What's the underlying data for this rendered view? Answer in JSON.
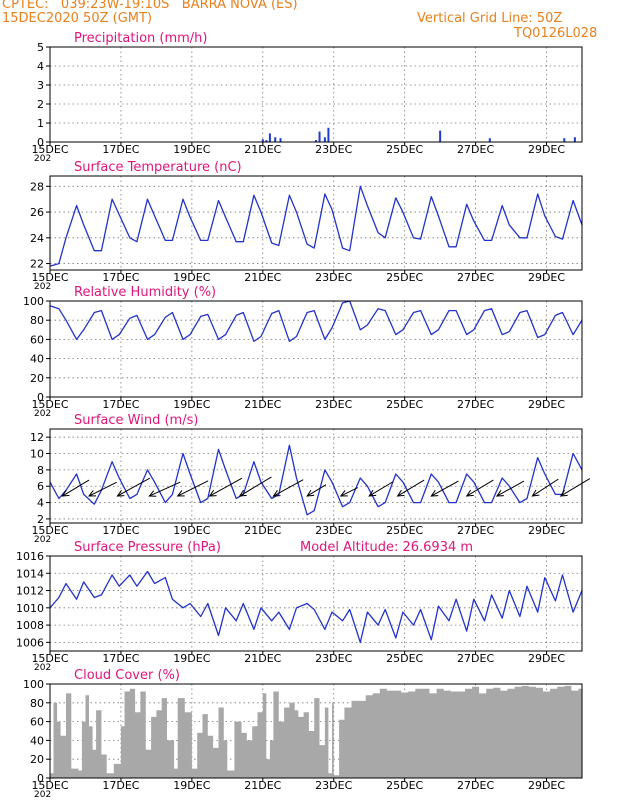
{
  "header": {
    "station_line": "CPTEC:   039:23W-19:10S   BARRA NOVA (ES)",
    "date_line": "15DEC2020 50Z (GMT)",
    "grid_note": "Vertical Grid Line: 50Z",
    "code": "TQ0126L028"
  },
  "colors": {
    "header_text": "#e8801e",
    "panel_title": "#e0157a",
    "series_line": "#2233cc",
    "precip_bar": "#1f3bd6",
    "cloud_fill": "#a8a8a8",
    "wind_arrow": "#000000"
  },
  "x_axis": {
    "ticks": [
      "15DEC",
      "17DEC",
      "19DEC",
      "21DEC",
      "23DEC",
      "25DEC",
      "27DEC",
      "29DEC"
    ],
    "year_fragment": "202",
    "tick_days": [
      15,
      17,
      19,
      21,
      23,
      25,
      27,
      29
    ],
    "range_days": [
      15,
      30
    ]
  },
  "chart_data": [
    {
      "id": "precip",
      "type": "bar",
      "title": "Precipitation  (mm/h)",
      "ylim": [
        0,
        5
      ],
      "yticks": [
        "0",
        "1",
        "2",
        "3",
        "4",
        "5"
      ],
      "ytick_values": [
        0,
        1,
        2,
        3,
        4,
        5
      ],
      "grid": true,
      "x": [
        21.0,
        21.1,
        21.2,
        21.35,
        21.5,
        22.5,
        22.6,
        22.75,
        22.85,
        26.0,
        27.4,
        29.5,
        29.8
      ],
      "values": [
        0.15,
        0.1,
        0.45,
        0.25,
        0.2,
        0.1,
        0.55,
        0.25,
        0.75,
        0.6,
        0.2,
        0.2,
        0.25
      ]
    },
    {
      "id": "temperature",
      "type": "line",
      "title": "Surface Temperature (nC)",
      "ylim": [
        21.5,
        28.8
      ],
      "yticks": [
        "22",
        "24",
        "26",
        "28"
      ],
      "ytick_values": [
        22,
        24,
        26,
        28
      ],
      "grid": true,
      "x": [
        15.0,
        15.25,
        15.45,
        15.75,
        15.95,
        16.25,
        16.45,
        16.75,
        16.95,
        17.25,
        17.45,
        17.75,
        17.95,
        18.25,
        18.45,
        18.75,
        18.95,
        19.25,
        19.45,
        19.75,
        19.95,
        20.25,
        20.45,
        20.75,
        20.95,
        21.25,
        21.45,
        21.75,
        21.95,
        22.25,
        22.45,
        22.75,
        22.95,
        23.25,
        23.45,
        23.75,
        23.95,
        24.25,
        24.45,
        24.75,
        24.95,
        25.25,
        25.45,
        25.75,
        25.95,
        26.25,
        26.45,
        26.75,
        26.95,
        27.25,
        27.45,
        27.75,
        27.95,
        28.25,
        28.45,
        28.75,
        28.95,
        29.25,
        29.45,
        29.75,
        30.0
      ],
      "values": [
        21.8,
        22.0,
        24.0,
        26.5,
        25.0,
        23.0,
        23.0,
        27.0,
        25.8,
        24.0,
        23.7,
        27.0,
        25.7,
        23.8,
        23.8,
        27.0,
        25.6,
        23.8,
        23.8,
        26.9,
        25.6,
        23.7,
        23.7,
        27.3,
        26.0,
        23.6,
        23.4,
        27.3,
        26.0,
        23.5,
        23.2,
        27.4,
        26.2,
        23.2,
        23.0,
        28.0,
        26.5,
        24.4,
        24.0,
        27.1,
        26.0,
        24.0,
        23.9,
        27.2,
        25.7,
        23.3,
        23.3,
        26.6,
        25.3,
        23.8,
        23.8,
        26.5,
        25.0,
        24.0,
        24.0,
        27.4,
        25.7,
        24.1,
        23.9,
        26.9,
        25.0
      ]
    },
    {
      "id": "humidity",
      "type": "line",
      "title": "Relative Humidity (%)",
      "ylim": [
        0,
        100
      ],
      "yticks": [
        "0",
        "20",
        "40",
        "60",
        "80",
        "100"
      ],
      "ytick_values": [
        0,
        20,
        40,
        60,
        80,
        100
      ],
      "grid": true,
      "x": [
        15.0,
        15.25,
        15.45,
        15.75,
        15.95,
        16.25,
        16.45,
        16.75,
        16.95,
        17.25,
        17.45,
        17.75,
        17.95,
        18.25,
        18.45,
        18.75,
        18.95,
        19.25,
        19.45,
        19.75,
        19.95,
        20.25,
        20.45,
        20.75,
        20.95,
        21.25,
        21.45,
        21.75,
        21.95,
        22.25,
        22.45,
        22.75,
        22.95,
        23.25,
        23.45,
        23.75,
        23.95,
        24.25,
        24.45,
        24.75,
        24.95,
        25.25,
        25.45,
        25.75,
        25.95,
        26.25,
        26.45,
        26.75,
        26.95,
        27.25,
        27.45,
        27.75,
        27.95,
        28.25,
        28.45,
        28.75,
        28.95,
        29.25,
        29.45,
        29.75,
        30.0
      ],
      "values": [
        95,
        92,
        80,
        60,
        70,
        88,
        90,
        60,
        65,
        82,
        85,
        60,
        65,
        83,
        88,
        60,
        65,
        84,
        86,
        60,
        65,
        85,
        88,
        58,
        63,
        87,
        90,
        58,
        63,
        88,
        90,
        60,
        72,
        98,
        100,
        70,
        75,
        92,
        90,
        65,
        70,
        88,
        90,
        65,
        70,
        90,
        90,
        65,
        70,
        90,
        92,
        65,
        68,
        88,
        90,
        62,
        65,
        85,
        88,
        65,
        80
      ]
    },
    {
      "id": "wind",
      "type": "line",
      "title": "Surface Wind (m/s)",
      "ylim": [
        1.5,
        13
      ],
      "yticks": [
        "2",
        "4",
        "6",
        "8",
        "10",
        "12"
      ],
      "ytick_values": [
        2,
        4,
        6,
        8,
        10,
        12
      ],
      "grid": true,
      "x": [
        15.0,
        15.25,
        15.45,
        15.75,
        15.95,
        16.25,
        16.45,
        16.75,
        16.95,
        17.25,
        17.45,
        17.75,
        17.95,
        18.25,
        18.45,
        18.75,
        18.95,
        19.25,
        19.45,
        19.75,
        19.95,
        20.25,
        20.45,
        20.75,
        20.95,
        21.25,
        21.45,
        21.75,
        21.95,
        22.25,
        22.45,
        22.75,
        22.95,
        23.25,
        23.45,
        23.75,
        23.95,
        24.25,
        24.45,
        24.75,
        24.95,
        25.25,
        25.45,
        25.75,
        25.95,
        26.25,
        26.45,
        26.75,
        26.95,
        27.25,
        27.45,
        27.75,
        27.95,
        28.25,
        28.45,
        28.75,
        28.95,
        29.25,
        29.45,
        29.75,
        30.0
      ],
      "values": [
        6.5,
        4.5,
        5.5,
        7.5,
        5.0,
        3.8,
        5.5,
        9.0,
        7.0,
        4.5,
        5.0,
        8.0,
        6.5,
        4.0,
        5.0,
        10.0,
        7.5,
        4.0,
        4.5,
        10.5,
        8.0,
        4.5,
        5.0,
        9.0,
        6.5,
        4.5,
        5.0,
        11.0,
        7.0,
        2.5,
        3.0,
        8.0,
        6.5,
        3.5,
        4.0,
        7.0,
        6.0,
        3.5,
        4.0,
        7.5,
        6.5,
        4.0,
        4.0,
        7.5,
        6.5,
        4.0,
        4.0,
        7.5,
        6.5,
        4.0,
        4.0,
        7.0,
        6.0,
        4.0,
        4.5,
        9.5,
        7.5,
        5.0,
        5.0,
        10.0,
        8.0
      ],
      "arrows": {
        "x": [
          15.35,
          16.1,
          16.9,
          17.8,
          18.6,
          19.5,
          20.35,
          21.3,
          22.25,
          23.2,
          24.0,
          24.8,
          25.75,
          26.75,
          27.6,
          28.6,
          29.4
        ],
        "u": [
          1.0,
          1.0,
          1.0,
          1.0,
          1.0,
          1.0,
          1.0,
          1.0,
          1.0,
          1.0,
          1.0,
          1.0,
          1.0,
          1.0,
          1.0,
          1.0,
          1.0
        ],
        "v": [
          0.6,
          0.5,
          0.55,
          0.45,
          0.5,
          0.55,
          0.6,
          0.55,
          0.6,
          0.5,
          0.6,
          0.6,
          0.55,
          0.6,
          0.55,
          0.65,
          0.6
        ],
        "mag": [
          7,
          7,
          9,
          8,
          8,
          9,
          9,
          8,
          4,
          3,
          6,
          7,
          7,
          7,
          7,
          7,
          8
        ]
      }
    },
    {
      "id": "pressure",
      "type": "line",
      "title": "Surface Pressure (hPa)",
      "ylim": [
        1005,
        1016
      ],
      "yticks": [
        "1006",
        "1008",
        "1010",
        "1012",
        "1014",
        "1016"
      ],
      "ytick_values": [
        1006,
        1008,
        1010,
        1012,
        1014,
        1016
      ],
      "grid": true,
      "x": [
        15.0,
        15.25,
        15.45,
        15.75,
        15.95,
        16.25,
        16.45,
        16.75,
        16.95,
        17.25,
        17.45,
        17.75,
        17.95,
        18.25,
        18.45,
        18.75,
        18.95,
        19.25,
        19.45,
        19.75,
        19.95,
        20.25,
        20.45,
        20.75,
        20.95,
        21.25,
        21.45,
        21.75,
        21.95,
        22.25,
        22.45,
        22.75,
        22.95,
        23.25,
        23.45,
        23.75,
        23.95,
        24.25,
        24.45,
        24.75,
        24.95,
        25.25,
        25.45,
        25.75,
        25.95,
        26.25,
        26.45,
        26.75,
        26.95,
        27.25,
        27.45,
        27.75,
        27.95,
        28.25,
        28.45,
        28.75,
        28.95,
        29.25,
        29.45,
        29.75,
        30.0
      ],
      "values": [
        1010.0,
        1011.2,
        1012.8,
        1011.0,
        1013.0,
        1011.2,
        1011.5,
        1013.8,
        1012.5,
        1013.8,
        1012.5,
        1014.2,
        1012.8,
        1013.5,
        1011.0,
        1010.0,
        1010.5,
        1009.0,
        1010.5,
        1006.8,
        1010.0,
        1008.5,
        1010.5,
        1007.5,
        1010.0,
        1008.5,
        1009.5,
        1007.5,
        1010.0,
        1010.5,
        1009.8,
        1007.5,
        1009.5,
        1008.5,
        1009.8,
        1006.0,
        1009.5,
        1008.0,
        1009.8,
        1006.5,
        1009.5,
        1008.0,
        1009.8,
        1006.3,
        1010.2,
        1008.5,
        1011.0,
        1007.3,
        1011.0,
        1008.5,
        1011.5,
        1008.8,
        1012.0,
        1009.0,
        1012.5,
        1009.5,
        1013.5,
        1010.8,
        1013.8,
        1009.5,
        1012.0
      ],
      "extra_label": "Model Altitude: 26.6934 m"
    },
    {
      "id": "cloud",
      "type": "area",
      "title": "Cloud Cover (%)",
      "ylim": [
        0,
        100
      ],
      "yticks": [
        "0",
        "20",
        "40",
        "60",
        "80",
        "100"
      ],
      "ytick_values": [
        0,
        20,
        40,
        60,
        80,
        100
      ],
      "grid": true,
      "x": [
        15.0,
        15.1,
        15.2,
        15.3,
        15.45,
        15.6,
        15.8,
        15.9,
        16.0,
        16.1,
        16.2,
        16.3,
        16.45,
        16.6,
        16.8,
        17.0,
        17.1,
        17.25,
        17.4,
        17.55,
        17.7,
        17.85,
        18.0,
        18.15,
        18.3,
        18.5,
        18.6,
        18.8,
        19.0,
        19.15,
        19.3,
        19.45,
        19.6,
        19.75,
        19.9,
        20.0,
        20.2,
        20.4,
        20.55,
        20.7,
        20.85,
        21.0,
        21.1,
        21.2,
        21.3,
        21.45,
        21.6,
        21.75,
        21.9,
        22.0,
        22.15,
        22.3,
        22.45,
        22.6,
        22.75,
        22.85,
        22.95,
        23.0,
        23.15,
        23.3,
        23.5,
        23.7,
        23.9,
        24.1,
        24.3,
        24.5,
        24.7,
        24.9,
        25.1,
        25.3,
        25.5,
        25.7,
        25.9,
        26.1,
        26.3,
        26.5,
        26.7,
        26.9,
        27.1,
        27.3,
        27.5,
        27.7,
        27.9,
        28.1,
        28.3,
        28.5,
        28.7,
        28.9,
        29.1,
        29.3,
        29.5,
        29.7,
        29.9,
        30.0
      ],
      "values": [
        5,
        80,
        60,
        45,
        90,
        10,
        8,
        60,
        88,
        55,
        30,
        72,
        25,
        5,
        15,
        55,
        92,
        95,
        70,
        92,
        30,
        65,
        72,
        85,
        40,
        10,
        85,
        70,
        10,
        48,
        68,
        45,
        32,
        75,
        40,
        8,
        60,
        48,
        40,
        55,
        70,
        90,
        20,
        40,
        92,
        60,
        75,
        80,
        72,
        65,
        70,
        50,
        85,
        35,
        75,
        5,
        80,
        3,
        62,
        75,
        82,
        82,
        88,
        90,
        95,
        93,
        93,
        91,
        92,
        95,
        95,
        90,
        95,
        93,
        92,
        92,
        95,
        97,
        90,
        95,
        96,
        93,
        95,
        97,
        98,
        97,
        96,
        92,
        95,
        97,
        98,
        93,
        95,
        92
      ]
    }
  ]
}
